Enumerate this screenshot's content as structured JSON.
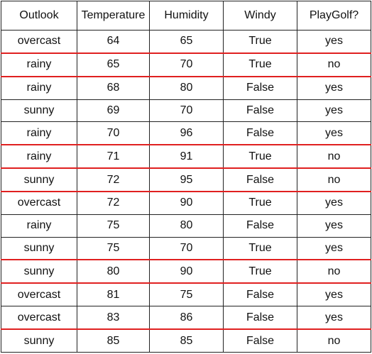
{
  "table": {
    "headers": [
      "Outlook",
      "Temperature",
      "Humidity",
      "Windy",
      "PlayGolf?"
    ],
    "rows": [
      [
        "overcast",
        "64",
        "65",
        "True",
        "yes"
      ],
      [
        "rainy",
        "65",
        "70",
        "True",
        "no"
      ],
      [
        "rainy",
        "68",
        "80",
        "False",
        "yes"
      ],
      [
        "sunny",
        "69",
        "70",
        "False",
        "yes"
      ],
      [
        "rainy",
        "70",
        "96",
        "False",
        "yes"
      ],
      [
        "rainy",
        "71",
        "91",
        "True",
        "no"
      ],
      [
        "sunny",
        "72",
        "95",
        "False",
        "no"
      ],
      [
        "overcast",
        "72",
        "90",
        "True",
        "yes"
      ],
      [
        "rainy",
        "75",
        "80",
        "False",
        "yes"
      ],
      [
        "sunny",
        "75",
        "70",
        "True",
        "yes"
      ],
      [
        "sunny",
        "80",
        "90",
        "True",
        "no"
      ],
      [
        "overcast",
        "81",
        "75",
        "False",
        "yes"
      ],
      [
        "overcast",
        "83",
        "86",
        "False",
        "yes"
      ],
      [
        "sunny",
        "85",
        "85",
        "False",
        "no"
      ]
    ],
    "separator_color": "#e02020",
    "red_separator_after_rows": [
      0,
      1,
      4,
      5,
      6,
      9,
      10,
      12
    ]
  }
}
